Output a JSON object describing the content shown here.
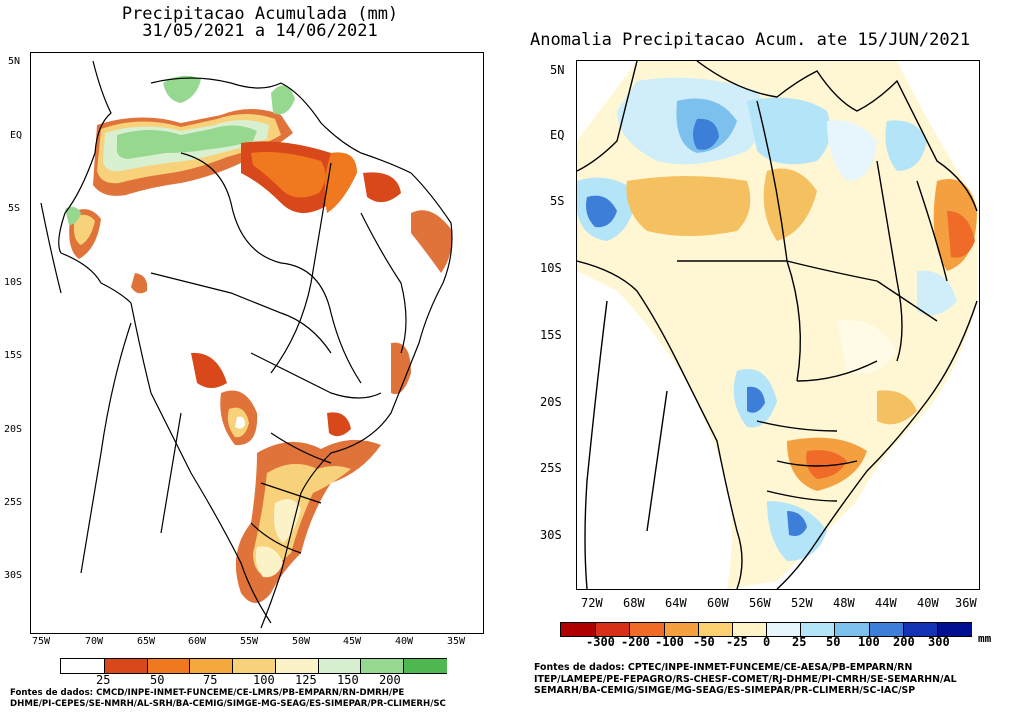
{
  "left_map": {
    "title_line1": "Precipitacao Acumulada (mm)",
    "title_line2": "31/05/2021 a 14/06/2021",
    "lat_labels": [
      "5N",
      "EQ",
      "5S",
      "10S",
      "15S",
      "20S",
      "25S",
      "30S"
    ],
    "lon_labels": [
      "75W",
      "70W",
      "65W",
      "60W",
      "55W",
      "50W",
      "45W",
      "40W",
      "35W"
    ],
    "colorbar": {
      "labels": [
        "25",
        "50",
        "75",
        "100",
        "125",
        "150",
        "200"
      ],
      "colors": [
        "#ffffff",
        "#d9481a",
        "#f0781e",
        "#f5a83c",
        "#f8d27a",
        "#fcf2c8",
        "#d8f0d0",
        "#96d890",
        "#50b850"
      ]
    },
    "credits_line1": "Fontes de dados: CMCD/INPE-INMET-FUNCEME/CE-LMRS/PB-EMPARN/RN-DMRH/PE",
    "credits_line2": "DHME/PI-CEPES/SE-NMRH/AL-SRH/BA-CEMIG/SIMGE-MG-SEAG/ES-SIMEPAR/PR-CLIMERH/SC"
  },
  "right_map": {
    "title": "Anomalia Precipitacao Acum. ate 15/JUN/2021",
    "lat_labels": [
      "5N",
      "EQ",
      "5S",
      "10S",
      "15S",
      "20S",
      "25S",
      "30S"
    ],
    "lon_labels": [
      "72W",
      "68W",
      "64W",
      "60W",
      "56W",
      "52W",
      "48W",
      "44W",
      "40W",
      "36W"
    ],
    "colorbar": {
      "labels": [
        "-300",
        "-200",
        "-100",
        "-50",
        "-25",
        "0",
        "25",
        "50",
        "100",
        "200",
        "300"
      ],
      "unit": "mm",
      "colors": [
        "#b00000",
        "#d83018",
        "#f06a28",
        "#f5a040",
        "#fad070",
        "#fff3c8",
        "#e6f6fc",
        "#b4e4f8",
        "#7cc0ee",
        "#3c7ed8",
        "#1432b4",
        "#001090"
      ]
    },
    "credits_line1": "Fontes de dados: CPTEC/INPE-INMET-FUNCEME/CE-AESA/PB-EMPARN/RN",
    "credits_line2": "ITEP/LAMEPE/PE-FEPAGRO/RS-CHESF-COMET/RJ-DHME/PI-CMRH/SE-SEMARHN/AL",
    "credits_line3": "SEMARH/BA-CEMIG/SIMGE/MG-SEAG/ES-SIMEPAR/PR-CLIMERH/SC-IAC/SP"
  }
}
